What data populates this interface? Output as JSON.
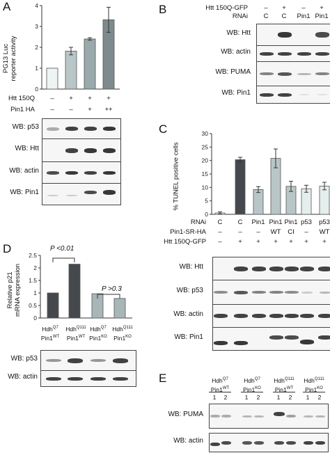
{
  "panels": {
    "A": "A",
    "B": "B",
    "C": "C",
    "D": "D",
    "E": "E"
  },
  "panel_a": {
    "ylabel_line1": "PG13 Luc",
    "ylabel_line2": "reporter activity",
    "rows": [
      {
        "label": "Htt 150Q",
        "marks": [
          "–",
          "+",
          "+",
          "+"
        ]
      },
      {
        "label": "Pin1 HA",
        "marks": [
          "–",
          "–",
          "+",
          "++"
        ]
      }
    ],
    "blots": [
      "WB: p53",
      "WB: Htt",
      "WB: actin",
      "WB: Pin1"
    ]
  },
  "panel_b": {
    "rows": [
      {
        "label": "Htt 150Q-GFP",
        "marks": [
          "–",
          "+",
          "–",
          "+"
        ]
      },
      {
        "label": "RNAi",
        "marks": [
          "C",
          "C",
          "Pin1",
          "Pin1"
        ]
      }
    ],
    "blots": [
      "WB: Htt",
      "WB: actin",
      "WB: PUMA",
      "WB: Pin1"
    ]
  },
  "panel_c": {
    "ylabel": "% TUNEL positive cells",
    "rows": [
      {
        "label": "RNAi",
        "marks": [
          "C",
          "C",
          "Pin1",
          "Pin1",
          "Pin1",
          "p53",
          "p53"
        ]
      },
      {
        "label": "Pin1-SR-HA",
        "marks": [
          "–",
          "–",
          "–",
          "WT",
          "CI",
          "–",
          "WT"
        ]
      },
      {
        "label": "Htt 150Q-GFP",
        "marks": [
          "–",
          "+",
          "+",
          "+",
          "+",
          "+",
          "+"
        ]
      }
    ],
    "blots": [
      "WB: Htt",
      "WB: p53",
      "WB: actin",
      "WB: Pin1"
    ]
  },
  "panel_d": {
    "ylabel_line1": "Relative p21",
    "ylabel_line2": "mRNA expression",
    "sig1": "P <0.01",
    "sig2": "P >0.3",
    "groups": [
      {
        "hdh": "Hdh",
        "hdh_sup": "Q7",
        "pin": "Pin1",
        "pin_sup": "WT"
      },
      {
        "hdh": "Hdh",
        "hdh_sup": "Q111",
        "pin": "Pin1",
        "pin_sup": "WT"
      },
      {
        "hdh": "Hdh",
        "hdh_sup": "Q7",
        "pin": "Pin1",
        "pin_sup": "KO"
      },
      {
        "hdh": "Hdh",
        "hdh_sup": "Q111",
        "pin": "Pin1",
        "pin_sup": "KO"
      }
    ],
    "blots": [
      "WB: p53",
      "WB: actin"
    ]
  },
  "panel_e": {
    "groups": [
      {
        "hdh": "Hdh",
        "hdh_sup": "Q7",
        "pin": "Pin1",
        "pin_sup": "WT"
      },
      {
        "hdh": "Hdh",
        "hdh_sup": "Q7",
        "pin": "Pin1",
        "pin_sup": "KO"
      },
      {
        "hdh": "Hdh",
        "hdh_sup": "Q111",
        "pin": "Pin1",
        "pin_sup": "WT"
      },
      {
        "hdh": "Hdh",
        "hdh_sup": "Q111",
        "pin": "Pin1",
        "pin_sup": "KO"
      }
    ],
    "lanes": [
      "1",
      "2",
      "1",
      "2",
      "1",
      "2",
      "1",
      "2"
    ],
    "blots": [
      "WB: PUMA",
      "WB: actin"
    ]
  },
  "colors": {
    "bar_white": "#eef3f3",
    "bar_light": "#b9c6c7",
    "bar_mid": "#9aa9ab",
    "bar_dark": "#7d8b8e",
    "bar_black": "#45494d"
  },
  "chart_data": [
    {
      "type": "bar",
      "panel": "A",
      "categories": [
        "1",
        "2",
        "3",
        "4"
      ],
      "values": [
        1.0,
        1.82,
        2.4,
        3.32
      ],
      "errors": [
        0.0,
        0.18,
        0.06,
        0.6
      ],
      "ylim": [
        0,
        4
      ],
      "yticks": [
        0,
        1,
        2,
        3,
        4
      ],
      "grid": false,
      "colors": [
        "#eef3f3",
        "#b9c6c7",
        "#9aa9ab",
        "#7d8b8e"
      ]
    },
    {
      "type": "bar",
      "panel": "C",
      "categories": [
        "1",
        "2",
        "3",
        "4",
        "5",
        "6",
        "7"
      ],
      "values": [
        0.5,
        20.3,
        9.2,
        20.8,
        10.4,
        9.5,
        10.5
      ],
      "errors": [
        0.4,
        0.9,
        1.1,
        3.5,
        1.9,
        1.3,
        1.4
      ],
      "ylim": [
        0,
        30
      ],
      "yticks": [
        0,
        5,
        10,
        15,
        20,
        25,
        30
      ],
      "grid": false,
      "colors": [
        "#eef3f3",
        "#45494d",
        "#b9c6c7",
        "#b9c6c7",
        "#b9c6c7",
        "#e6eded",
        "#e6eded"
      ]
    },
    {
      "type": "bar",
      "panel": "D",
      "categories": [
        "1",
        "2",
        "3",
        "4"
      ],
      "values": [
        1.0,
        2.15,
        0.97,
        0.78
      ],
      "ylim": [
        0,
        2.5
      ],
      "yticks": [
        0,
        0.5,
        1,
        1.5,
        2,
        2.5
      ],
      "grid": false,
      "colors": [
        "#45494d",
        "#45494d",
        "#a9b6b7",
        "#a9b6b7"
      ]
    }
  ]
}
